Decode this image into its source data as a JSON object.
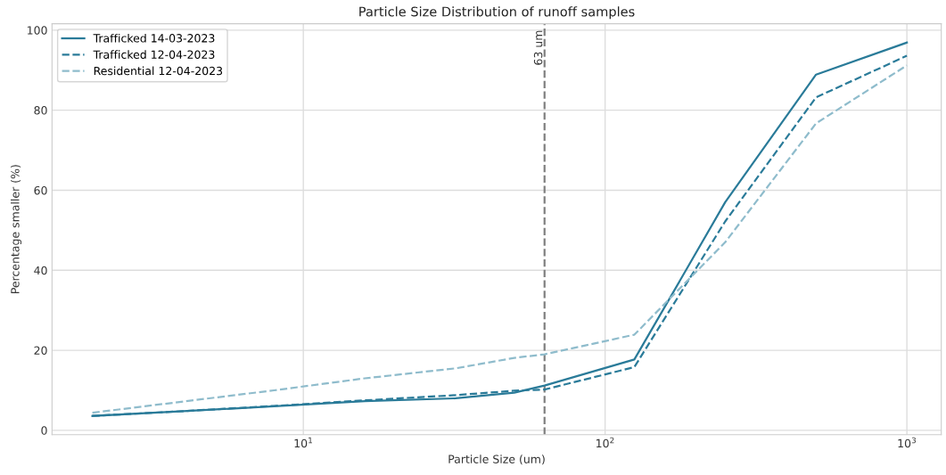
{
  "chart_data": {
    "type": "line",
    "title": "Particle Size Distribution of runoff samples",
    "xlabel": "Particle Size (um)",
    "ylabel": "Percentage smaller (%)",
    "x": [
      2,
      4,
      8,
      16,
      32,
      50,
      63,
      125,
      250,
      500,
      1000
    ],
    "series": [
      {
        "name": "Trafficked 14-03-2023",
        "color": "#2a7b99",
        "line_style": "solid",
        "values": [
          3.6,
          4.8,
          6.0,
          7.3,
          8.0,
          9.4,
          11.2,
          17.7,
          57.0,
          88.9,
          96.9
        ]
      },
      {
        "name": "Trafficked 12-04-2023",
        "color": "#2a7b99",
        "line_style": "dashed",
        "values": [
          3.6,
          4.8,
          6.1,
          7.5,
          8.8,
          9.9,
          10.2,
          15.8,
          52.2,
          83.2,
          93.6
        ]
      },
      {
        "name": "Residential 12-04-2023",
        "color": "#8fbccc",
        "line_style": "dashed",
        "values": [
          4.4,
          7.2,
          10.0,
          13.0,
          15.5,
          18.1,
          19.0,
          23.9,
          47.0,
          76.7,
          91.2
        ]
      }
    ],
    "log": "x",
    "xlim": [
      1.47,
      1300
    ],
    "xticks": [
      {
        "value": 10,
        "label": "10$^{1}$"
      },
      {
        "value": 100,
        "label": "10$^{2}$"
      },
      {
        "value": 1000,
        "label": "10$^{3}$"
      }
    ],
    "ylim": [
      -1.07,
      101.6
    ],
    "yticks": [
      0,
      20,
      40,
      60,
      80,
      100
    ],
    "ref_lines": [
      {
        "axis": "x",
        "value": 63,
        "label": "63 um",
        "color": "#808080",
        "line_style": "dashed"
      }
    ],
    "grid": true,
    "legend": "top left"
  }
}
